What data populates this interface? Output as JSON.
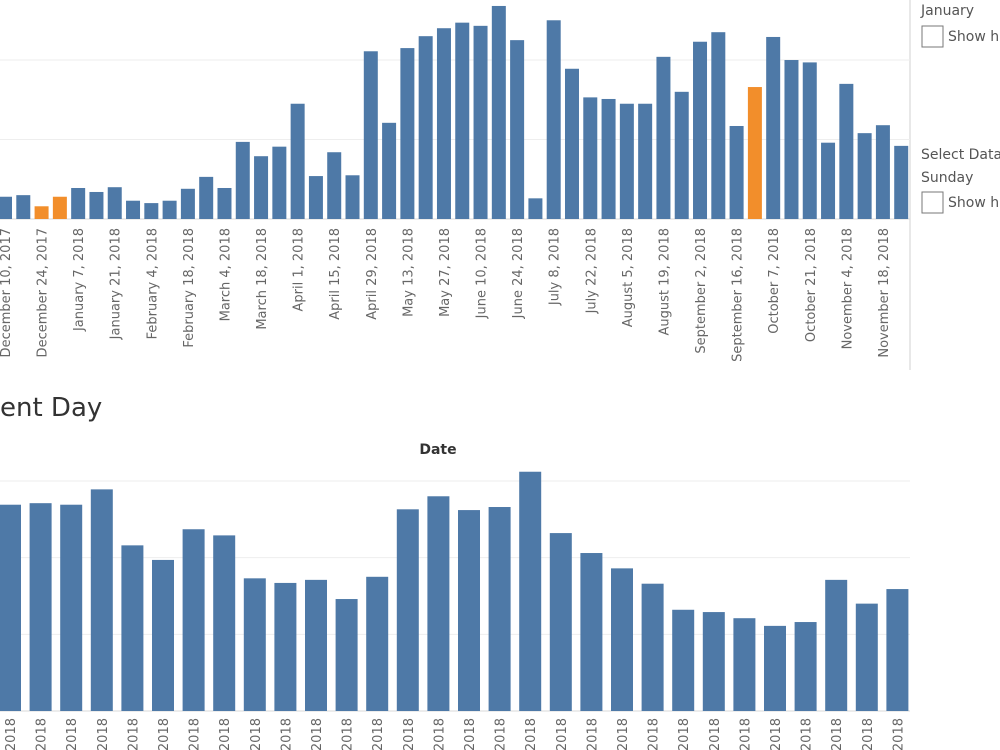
{
  "chart_data": [
    {
      "type": "bar",
      "categories": [
        "December 10, 2017",
        null,
        "December 24, 2017",
        null,
        "January 7, 2018",
        null,
        "January 21, 2018",
        null,
        "February 4, 2018",
        null,
        "February 18, 2018",
        null,
        "March 4, 2018",
        null,
        "March 18, 2018",
        null,
        "April 1, 2018",
        null,
        "April 15, 2018",
        null,
        "April 29, 2018",
        null,
        "May 13, 2018",
        null,
        "May 27, 2018",
        null,
        "June 10, 2018",
        null,
        "June 24, 2018",
        null,
        "July 8, 2018",
        null,
        "July 22, 2018",
        null,
        "August 5, 2018",
        null,
        "August 19, 2018",
        null,
        "September 2, 2018",
        null,
        "September 16, 2018",
        null,
        "October 7, 2018",
        null,
        "October 21, 2018",
        null,
        "November 4, 2018",
        null,
        "November 18, 2018",
        null
      ],
      "values": [
        0.28,
        0.3,
        0.16,
        0.28,
        0.39,
        0.34,
        0.4,
        0.23,
        0.2,
        0.23,
        0.38,
        0.53,
        0.39,
        0.97,
        0.79,
        0.91,
        1.45,
        0.54,
        0.84,
        0.55,
        2.11,
        1.21,
        2.15,
        2.3,
        2.4,
        2.47,
        2.43,
        2.68,
        2.25,
        0.26,
        2.5,
        1.89,
        1.53,
        1.51,
        1.45,
        1.45,
        2.04,
        1.6,
        2.23,
        2.35,
        1.17,
        1.66,
        2.29,
        2.0,
        1.97,
        0.96,
        1.7,
        1.08,
        1.18,
        0.92
      ],
      "colors": [
        "#4e79a7",
        "#4e79a7",
        "#f28e2b",
        "#f28e2b",
        "#4e79a7",
        "#4e79a7",
        "#4e79a7",
        "#4e79a7",
        "#4e79a7",
        "#4e79a7",
        "#4e79a7",
        "#4e79a7",
        "#4e79a7",
        "#4e79a7",
        "#4e79a7",
        "#4e79a7",
        "#4e79a7",
        "#4e79a7",
        "#4e79a7",
        "#4e79a7",
        "#4e79a7",
        "#4e79a7",
        "#4e79a7",
        "#4e79a7",
        "#4e79a7",
        "#4e79a7",
        "#4e79a7",
        "#4e79a7",
        "#4e79a7",
        "#4e79a7",
        "#4e79a7",
        "#4e79a7",
        "#4e79a7",
        "#4e79a7",
        "#4e79a7",
        "#4e79a7",
        "#4e79a7",
        "#4e79a7",
        "#4e79a7",
        "#4e79a7",
        "#4e79a7",
        "#f28e2b",
        "#4e79a7",
        "#4e79a7",
        "#4e79a7",
        "#4e79a7",
        "#4e79a7",
        "#4e79a7",
        "#4e79a7",
        "#4e79a7"
      ],
      "ylim": [
        0,
        2.75
      ],
      "yticks": [
        0,
        1,
        2
      ],
      "grid": true
    },
    {
      "type": "bar",
      "title": "Date",
      "categories": [
        "2018",
        "2018",
        "2018",
        "2018",
        "2018",
        "2018",
        "2018",
        "2018",
        "2018",
        "2018",
        "2018",
        "2018",
        "2018",
        "2018",
        "2018",
        "2018",
        "2018",
        "2018",
        "2018",
        "2018",
        "2018",
        "2018",
        "2018",
        "2018",
        "2018",
        "2018",
        "2018",
        "2018",
        "2018",
        "2018"
      ],
      "values": [
        2.69,
        2.71,
        2.69,
        2.89,
        2.16,
        1.97,
        2.37,
        2.29,
        1.73,
        1.67,
        1.71,
        1.46,
        1.75,
        2.63,
        2.8,
        2.62,
        2.66,
        3.12,
        2.32,
        2.06,
        1.86,
        1.66,
        1.32,
        1.29,
        1.21,
        1.11,
        1.16,
        1.71,
        1.4,
        1.59
      ],
      "color": "#4e79a7",
      "ylim": [
        0,
        3.2
      ],
      "yticks": [
        0,
        1,
        2,
        3
      ],
      "grid": true
    }
  ],
  "section_title": "ent Day",
  "filters": [
    {
      "label": "January",
      "option": "Show h"
    },
    {
      "label": "Select Data",
      "sublabel": "Sunday",
      "option": "Show h"
    }
  ]
}
